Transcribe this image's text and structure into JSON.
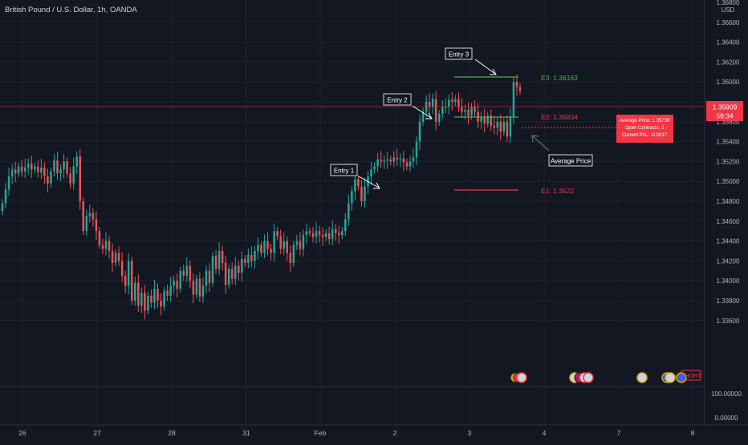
{
  "header": {
    "symbol_title": "British Pound / U.S. Dollar, 1h, OANDA"
  },
  "colors": {
    "background": "#131722",
    "up": "#26a69a",
    "down": "#ef5350",
    "grid": "#1f2230",
    "text": "#b2b5be",
    "entry_line": "#4caf50",
    "stop_line": "#f23645",
    "last_price_bg": "#f23645"
  },
  "price_axis": {
    "currency": "USD",
    "top_label": "1.36800",
    "ticks": [
      "1.36600",
      "1.36400",
      "1.36200",
      "1.36000",
      "1.35800",
      "1.35600",
      "1.35400",
      "1.35200",
      "1.35000",
      "1.34800",
      "1.34600",
      "1.34400",
      "1.34200",
      "1.34000",
      "1.33800",
      "1.33600"
    ],
    "last_price": "1.35909",
    "countdown": "59:34",
    "hidden_label": "1.35800"
  },
  "sub_axis": {
    "ticks": [
      "100.00000",
      "0.00000"
    ]
  },
  "time_axis": {
    "labels": [
      "26",
      "27",
      "28",
      "31",
      "Feb",
      "2",
      "3",
      "4",
      "7",
      "8"
    ]
  },
  "annotations": {
    "entry_1": "Entry 1",
    "entry_2": "Entry 2",
    "entry_3": "Entry 3",
    "average_price": "Average Price",
    "e1": "E1: 1.3522",
    "e2": "E2: 1.35834",
    "e3": "E3: 1.36163",
    "tooltip": [
      "Average Price: 1.35739",
      "Open Contracts: 3",
      "Current PnL: -0.0017"
    ],
    "short_tag": "SHORT"
  },
  "chart_data": {
    "type": "candlestick",
    "title": "British Pound / U.S. Dollar, 1h, OANDA",
    "y_unit": "USD",
    "ylim": [
      1.3355,
      1.3685
    ],
    "x_ticks": [
      "26",
      "27",
      "28",
      "31",
      "Feb",
      "2",
      "3",
      "4",
      "7",
      "8"
    ],
    "grid": true,
    "horizontal_levels": [
      {
        "label": "E1: 1.3522",
        "value": 1.3522
      },
      {
        "label": "E2: 1.35834",
        "value": 1.35834
      },
      {
        "label": "E3: 1.36163",
        "value": 1.36163
      },
      {
        "label": "Average Price: 1.35739",
        "value": 1.35739
      }
    ],
    "last_price": 1.35909,
    "closes": [
      1.3478,
      1.3492,
      1.3505,
      1.3512,
      1.3508,
      1.3515,
      1.351,
      1.3514,
      1.3518,
      1.3512,
      1.3515,
      1.3509,
      1.3514,
      1.3505,
      1.3498,
      1.351,
      1.3521,
      1.3508,
      1.3512,
      1.352,
      1.3508,
      1.3498,
      1.3515,
      1.3525,
      1.348,
      1.345,
      1.3465,
      1.3468,
      1.3462,
      1.345,
      1.3436,
      1.3432,
      1.344,
      1.343,
      1.3418,
      1.3428,
      1.342,
      1.3405,
      1.3395,
      1.342,
      1.338,
      1.3398,
      1.3375,
      1.3388,
      1.337,
      1.3385,
      1.3378,
      1.3392,
      1.338,
      1.3374,
      1.339,
      1.3385,
      1.3395,
      1.34,
      1.3392,
      1.341,
      1.3405,
      1.3415,
      1.34,
      1.3386,
      1.3402,
      1.3384,
      1.3395,
      1.341,
      1.3398,
      1.3425,
      1.3412,
      1.343,
      1.3418,
      1.3396,
      1.3412,
      1.3402,
      1.3415,
      1.3408,
      1.3422,
      1.3418,
      1.3426,
      1.342,
      1.343,
      1.3436,
      1.3428,
      1.344,
      1.3432,
      1.3428,
      1.345,
      1.3445,
      1.3432,
      1.344,
      1.3428,
      1.3418,
      1.3436,
      1.344,
      1.3432,
      1.3446,
      1.345,
      1.3448,
      1.3444,
      1.345,
      1.3446,
      1.3444,
      1.3448,
      1.3442,
      1.3452,
      1.3448,
      1.3446,
      1.345,
      1.3462,
      1.3478,
      1.349,
      1.3502,
      1.3495,
      1.348,
      1.3495,
      1.3505,
      1.3512,
      1.3515,
      1.3522,
      1.352,
      1.3521,
      1.3522,
      1.352,
      1.3524,
      1.3522,
      1.3523,
      1.3519,
      1.3515,
      1.352,
      1.3524,
      1.354,
      1.356,
      1.357,
      1.358,
      1.3575,
      1.3583,
      1.356,
      1.3568,
      1.3575,
      1.3575,
      1.3582,
      1.358,
      1.3583,
      1.3575,
      1.357,
      1.3572,
      1.3566,
      1.3575,
      1.357,
      1.356,
      1.3565,
      1.3558,
      1.3566,
      1.3556,
      1.3554,
      1.356,
      1.355,
      1.356,
      1.3545,
      1.3565,
      1.36,
      1.3595,
      1.3591
    ]
  }
}
